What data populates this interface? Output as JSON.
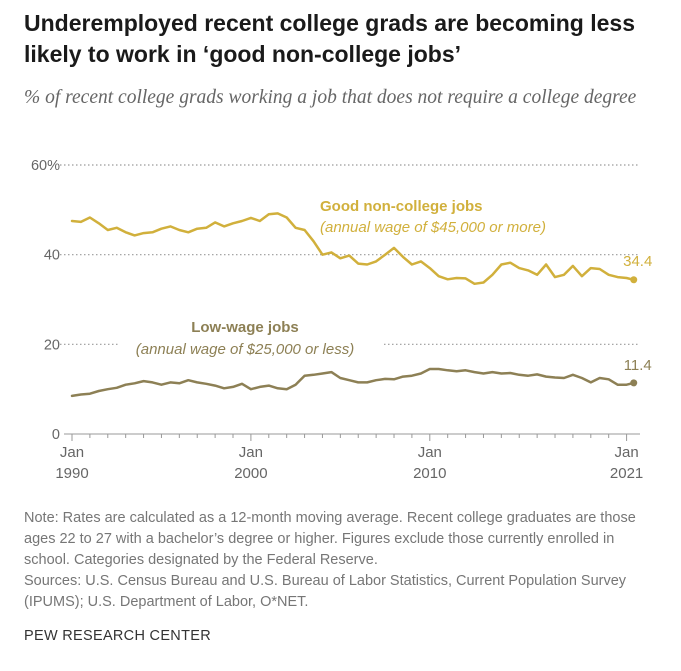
{
  "title": "Underemployed recent college grads are becoming less likely to work in ‘good non-college jobs’",
  "subtitle": "% of recent college grads working a job that does not require a college degree",
  "note": "Note: Rates are calculated as a 12-month moving average. Recent college graduates are those ages 22 to 27 with a bachelor’s degree or higher. Figures exclude those currently enrolled in school. Categories designated by the Federal Reserve.",
  "sources": "Sources: U.S. Census Bureau and U.S. Bureau of Labor Statistics, Current Population Survey (IPUMS); U.S. Department of Labor, O*NET.",
  "org": "PEW RESEARCH CENTER",
  "colors": {
    "good": "#d1b03c",
    "low": "#8d8055",
    "grid": "#9a9a9a",
    "axis": "#999999",
    "tick_text": "#666666"
  },
  "chart_data": {
    "type": "line",
    "title": "Underemployed recent college grads are becoming less likely to work in ‘good non-college jobs’",
    "ylabel": "% of recent college grads working a job that does not require a college degree",
    "xlim": [
      1990,
      2021.75
    ],
    "ylim": [
      0,
      60
    ],
    "y_ticks": [
      {
        "value": 0,
        "label": "0"
      },
      {
        "value": 20,
        "label": "20"
      },
      {
        "value": 40,
        "label": "40"
      },
      {
        "value": 60,
        "label": "60%"
      }
    ],
    "x_ticks": [
      {
        "value": 1990,
        "line1": "Jan",
        "line2": "1990"
      },
      {
        "value": 2000,
        "line1": "Jan",
        "line2": "2000"
      },
      {
        "value": 2010,
        "line1": "Jan",
        "line2": "2010"
      },
      {
        "value": 2021,
        "line1": "Jan",
        "line2": "2021"
      }
    ],
    "series": [
      {
        "name": "Good non-college jobs",
        "sublabel": "(annual wage of $45,000 or more)",
        "color": "#d1b03c",
        "end_label": "34.4",
        "points": [
          [
            1990,
            47.5
          ],
          [
            1990.5,
            47.3
          ],
          [
            1991,
            48.3
          ],
          [
            1991.5,
            47
          ],
          [
            1992,
            45.5
          ],
          [
            1992.5,
            46
          ],
          [
            1993,
            45
          ],
          [
            1993.5,
            44.3
          ],
          [
            1994,
            44.8
          ],
          [
            1994.5,
            45
          ],
          [
            1995,
            45.8
          ],
          [
            1995.5,
            46.3
          ],
          [
            1996,
            45.5
          ],
          [
            1996.5,
            45
          ],
          [
            1997,
            45.8
          ],
          [
            1997.5,
            46
          ],
          [
            1998,
            47.2
          ],
          [
            1998.5,
            46.3
          ],
          [
            1999,
            47
          ],
          [
            1999.5,
            47.5
          ],
          [
            2000,
            48.2
          ],
          [
            2000.5,
            47.5
          ],
          [
            2001,
            49
          ],
          [
            2001.5,
            49.2
          ],
          [
            2002,
            48.3
          ],
          [
            2002.5,
            46
          ],
          [
            2003,
            45.5
          ],
          [
            2003.5,
            43
          ],
          [
            2004,
            40
          ],
          [
            2004.5,
            40.5
          ],
          [
            2005,
            39.2
          ],
          [
            2005.5,
            39.8
          ],
          [
            2006,
            38
          ],
          [
            2006.5,
            37.8
          ],
          [
            2007,
            38.5
          ],
          [
            2007.5,
            40
          ],
          [
            2008,
            41.5
          ],
          [
            2008.5,
            39.5
          ],
          [
            2009,
            37.8
          ],
          [
            2009.5,
            38.5
          ],
          [
            2010,
            37
          ],
          [
            2010.5,
            35.2
          ],
          [
            2011,
            34.5
          ],
          [
            2011.5,
            34.8
          ],
          [
            2012,
            34.7
          ],
          [
            2012.5,
            33.5
          ],
          [
            2013,
            33.8
          ],
          [
            2013.5,
            35.5
          ],
          [
            2014,
            37.8
          ],
          [
            2014.5,
            38.2
          ],
          [
            2015,
            37
          ],
          [
            2015.5,
            36.5
          ],
          [
            2016,
            35.5
          ],
          [
            2016.5,
            37.8
          ],
          [
            2017,
            35
          ],
          [
            2017.5,
            35.5
          ],
          [
            2018,
            37.5
          ],
          [
            2018.5,
            35.2
          ],
          [
            2019,
            37
          ],
          [
            2019.5,
            36.8
          ],
          [
            2020,
            35.5
          ],
          [
            2020.5,
            35
          ],
          [
            2021,
            34.8
          ],
          [
            2021.4,
            34.4
          ]
        ]
      },
      {
        "name": "Low-wage jobs",
        "sublabel": "(annual wage of $25,000 or less)",
        "color": "#8d8055",
        "end_label": "11.4",
        "points": [
          [
            1990,
            8.5
          ],
          [
            1990.5,
            8.8
          ],
          [
            1991,
            9
          ],
          [
            1991.5,
            9.6
          ],
          [
            1992,
            10
          ],
          [
            1992.5,
            10.3
          ],
          [
            1993,
            11
          ],
          [
            1993.5,
            11.3
          ],
          [
            1994,
            11.8
          ],
          [
            1994.5,
            11.5
          ],
          [
            1995,
            11
          ],
          [
            1995.5,
            11.5
          ],
          [
            1996,
            11.3
          ],
          [
            1996.5,
            12
          ],
          [
            1997,
            11.5
          ],
          [
            1997.5,
            11.2
          ],
          [
            1998,
            10.8
          ],
          [
            1998.5,
            10.2
          ],
          [
            1999,
            10.5
          ],
          [
            1999.5,
            11.2
          ],
          [
            2000,
            10
          ],
          [
            2000.5,
            10.5
          ],
          [
            2001,
            10.8
          ],
          [
            2001.5,
            10.2
          ],
          [
            2002,
            10
          ],
          [
            2002.5,
            11
          ],
          [
            2003,
            13
          ],
          [
            2003.5,
            13.2
          ],
          [
            2004,
            13.5
          ],
          [
            2004.5,
            13.8
          ],
          [
            2005,
            12.5
          ],
          [
            2005.5,
            12
          ],
          [
            2006,
            11.5
          ],
          [
            2006.5,
            11.5
          ],
          [
            2007,
            12
          ],
          [
            2007.5,
            12.3
          ],
          [
            2008,
            12.2
          ],
          [
            2008.5,
            12.8
          ],
          [
            2009,
            13
          ],
          [
            2009.5,
            13.5
          ],
          [
            2010,
            14.5
          ],
          [
            2010.5,
            14.5
          ],
          [
            2011,
            14.2
          ],
          [
            2011.5,
            14
          ],
          [
            2012,
            14.2
          ],
          [
            2012.5,
            13.8
          ],
          [
            2013,
            13.5
          ],
          [
            2013.5,
            13.8
          ],
          [
            2014,
            13.5
          ],
          [
            2014.5,
            13.6
          ],
          [
            2015,
            13.2
          ],
          [
            2015.5,
            13
          ],
          [
            2016,
            13.3
          ],
          [
            2016.5,
            12.8
          ],
          [
            2017,
            12.6
          ],
          [
            2017.5,
            12.5
          ],
          [
            2018,
            13.2
          ],
          [
            2018.5,
            12.5
          ],
          [
            2019,
            11.5
          ],
          [
            2019.5,
            12.5
          ],
          [
            2020,
            12.2
          ],
          [
            2020.5,
            11
          ],
          [
            2021,
            11
          ],
          [
            2021.4,
            11.4
          ]
        ]
      }
    ]
  }
}
